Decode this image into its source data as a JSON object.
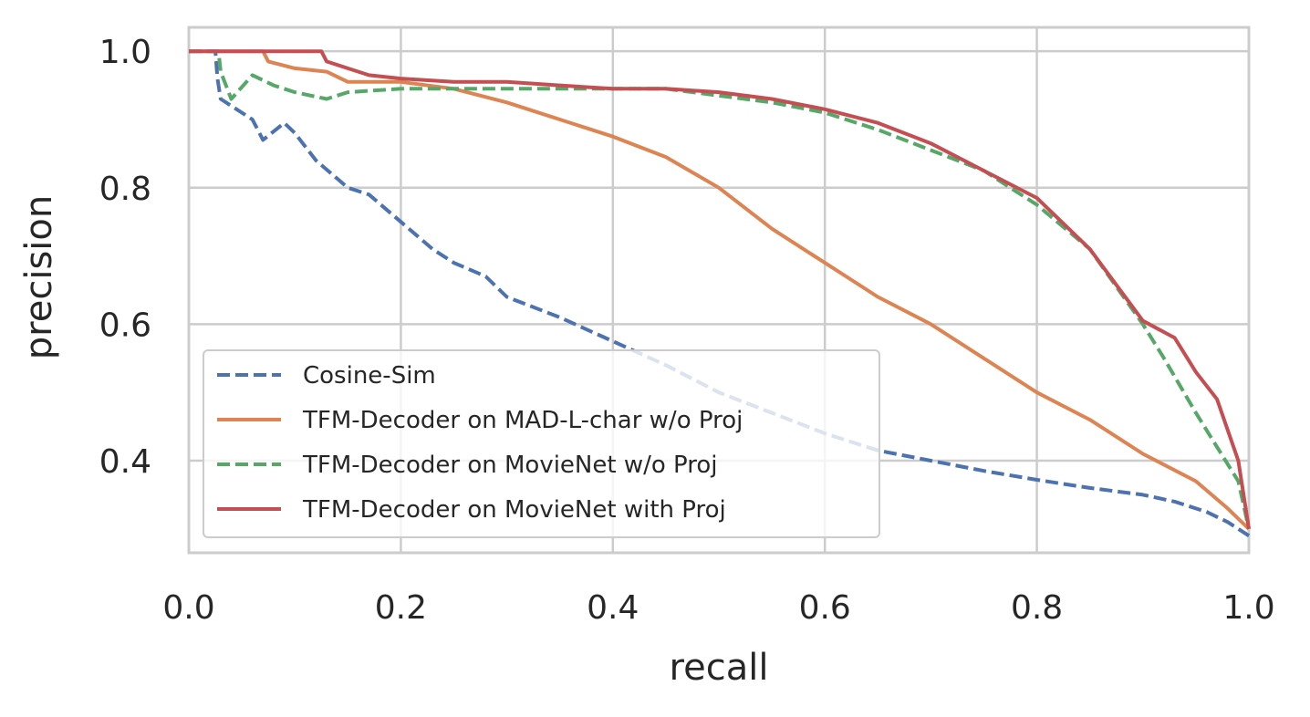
{
  "chart_data": {
    "type": "line",
    "title": "",
    "xlabel": "recall",
    "ylabel": "precision",
    "xlim": [
      0.0,
      1.0
    ],
    "ylim": [
      0.265,
      1.035
    ],
    "xticks": [
      0.0,
      0.2,
      0.4,
      0.6,
      0.8,
      1.0
    ],
    "xtick_labels": [
      "0.0",
      "0.2",
      "0.4",
      "0.6",
      "0.8",
      "1.0"
    ],
    "yticks": [
      0.4,
      0.6,
      0.8,
      1.0
    ],
    "ytick_labels": [
      "0.4",
      "0.6",
      "0.8",
      "1.0"
    ],
    "grid": true,
    "legend_position": "lower-left",
    "series": [
      {
        "name": "Cosine-Sim",
        "color": "#4c72b0",
        "dashed": true,
        "x": [
          0.0,
          0.025,
          0.027,
          0.03,
          0.04,
          0.06,
          0.07,
          0.09,
          0.1,
          0.12,
          0.15,
          0.17,
          0.2,
          0.23,
          0.25,
          0.28,
          0.3,
          0.35,
          0.4,
          0.45,
          0.5,
          0.55,
          0.6,
          0.65,
          0.7,
          0.75,
          0.8,
          0.85,
          0.9,
          0.93,
          0.96,
          0.98,
          1.0
        ],
        "y": [
          1.0,
          1.0,
          0.96,
          0.93,
          0.92,
          0.9,
          0.87,
          0.895,
          0.88,
          0.84,
          0.8,
          0.79,
          0.75,
          0.71,
          0.69,
          0.67,
          0.64,
          0.61,
          0.575,
          0.54,
          0.5,
          0.47,
          0.44,
          0.415,
          0.4,
          0.385,
          0.372,
          0.36,
          0.35,
          0.34,
          0.325,
          0.31,
          0.29
        ]
      },
      {
        "name": "TFM-Decoder on MAD-L-char w/o Proj",
        "color": "#dd8452",
        "dashed": false,
        "x": [
          0.0,
          0.07,
          0.075,
          0.1,
          0.13,
          0.15,
          0.2,
          0.25,
          0.3,
          0.35,
          0.4,
          0.45,
          0.5,
          0.55,
          0.6,
          0.65,
          0.7,
          0.75,
          0.8,
          0.85,
          0.9,
          0.95,
          0.98,
          1.0
        ],
        "y": [
          1.0,
          1.0,
          0.985,
          0.975,
          0.97,
          0.955,
          0.955,
          0.945,
          0.925,
          0.9,
          0.875,
          0.845,
          0.8,
          0.74,
          0.69,
          0.64,
          0.6,
          0.55,
          0.5,
          0.46,
          0.41,
          0.37,
          0.33,
          0.3
        ]
      },
      {
        "name": "TFM-Decoder on MovieNet w/o Proj",
        "color": "#55a868",
        "dashed": true,
        "x": [
          0.0,
          0.028,
          0.03,
          0.04,
          0.06,
          0.08,
          0.1,
          0.13,
          0.15,
          0.2,
          0.25,
          0.3,
          0.35,
          0.4,
          0.45,
          0.5,
          0.55,
          0.6,
          0.65,
          0.7,
          0.75,
          0.8,
          0.85,
          0.9,
          0.92,
          0.95,
          0.97,
          0.99,
          1.0
        ],
        "y": [
          1.0,
          1.0,
          0.97,
          0.93,
          0.965,
          0.95,
          0.94,
          0.93,
          0.94,
          0.945,
          0.945,
          0.945,
          0.945,
          0.945,
          0.945,
          0.935,
          0.925,
          0.91,
          0.885,
          0.855,
          0.825,
          0.775,
          0.71,
          0.6,
          0.55,
          0.47,
          0.42,
          0.37,
          0.3
        ]
      },
      {
        "name": "TFM-Decoder on MovieNet with Proj",
        "color": "#c44e52",
        "dashed": false,
        "x": [
          0.0,
          0.125,
          0.13,
          0.17,
          0.2,
          0.25,
          0.3,
          0.35,
          0.4,
          0.45,
          0.5,
          0.55,
          0.6,
          0.65,
          0.7,
          0.75,
          0.8,
          0.85,
          0.9,
          0.93,
          0.95,
          0.97,
          0.99,
          1.0
        ],
        "y": [
          1.0,
          1.0,
          0.985,
          0.965,
          0.96,
          0.955,
          0.955,
          0.95,
          0.945,
          0.945,
          0.94,
          0.93,
          0.915,
          0.895,
          0.865,
          0.825,
          0.785,
          0.71,
          0.605,
          0.58,
          0.53,
          0.49,
          0.4,
          0.3
        ]
      }
    ]
  }
}
